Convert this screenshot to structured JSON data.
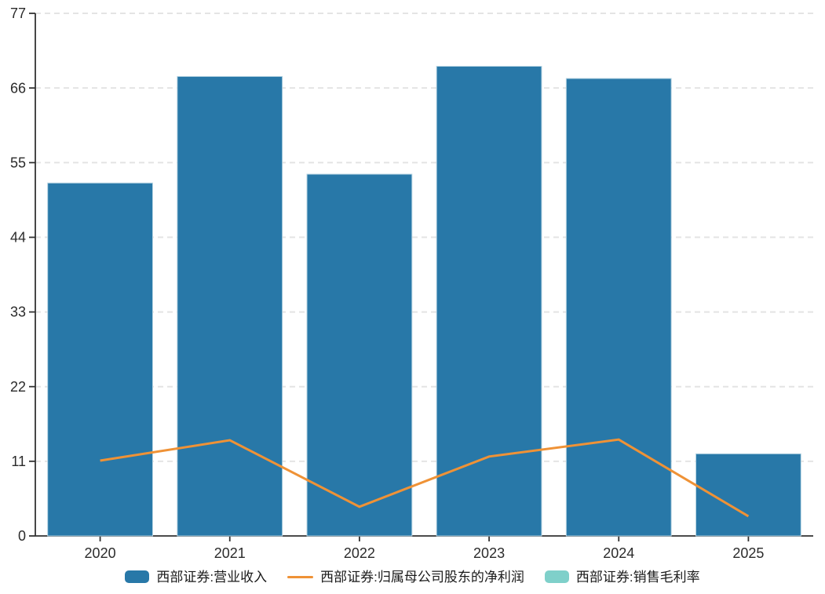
{
  "chart_data": {
    "type": "bar",
    "subtype": "combo-bar-line",
    "title": "",
    "xlabel": "",
    "ylabel": "",
    "categories": [
      "2020",
      "2021",
      "2022",
      "2023",
      "2024",
      "2025"
    ],
    "series": [
      {
        "name": "西部证券:营业收入",
        "type": "bar",
        "color": "#2878a8",
        "values": [
          52.0,
          67.7,
          53.3,
          69.2,
          67.4,
          12.1
        ]
      },
      {
        "name": "西部证券:归属母公司股东的净利润",
        "type": "line",
        "color": "#ef9236",
        "values": [
          11.1,
          14.1,
          4.3,
          11.7,
          14.2,
          2.9
        ]
      },
      {
        "name": "西部证券:销售毛利率",
        "type": "bar",
        "color": "#7fd0ca",
        "values": []
      }
    ],
    "ylim": [
      0,
      77
    ],
    "yticks": [
      0,
      11,
      22,
      33,
      44,
      55,
      66,
      77
    ],
    "grid": "horizontal-dashed",
    "legend_position": "bottom",
    "style": {
      "grid_color": "#e4e4e4",
      "axis_color": "#333333",
      "tick_label_color": "#2b2b2b",
      "bar_edge_color": "#b5d3e2",
      "background": "#ffffff"
    }
  }
}
